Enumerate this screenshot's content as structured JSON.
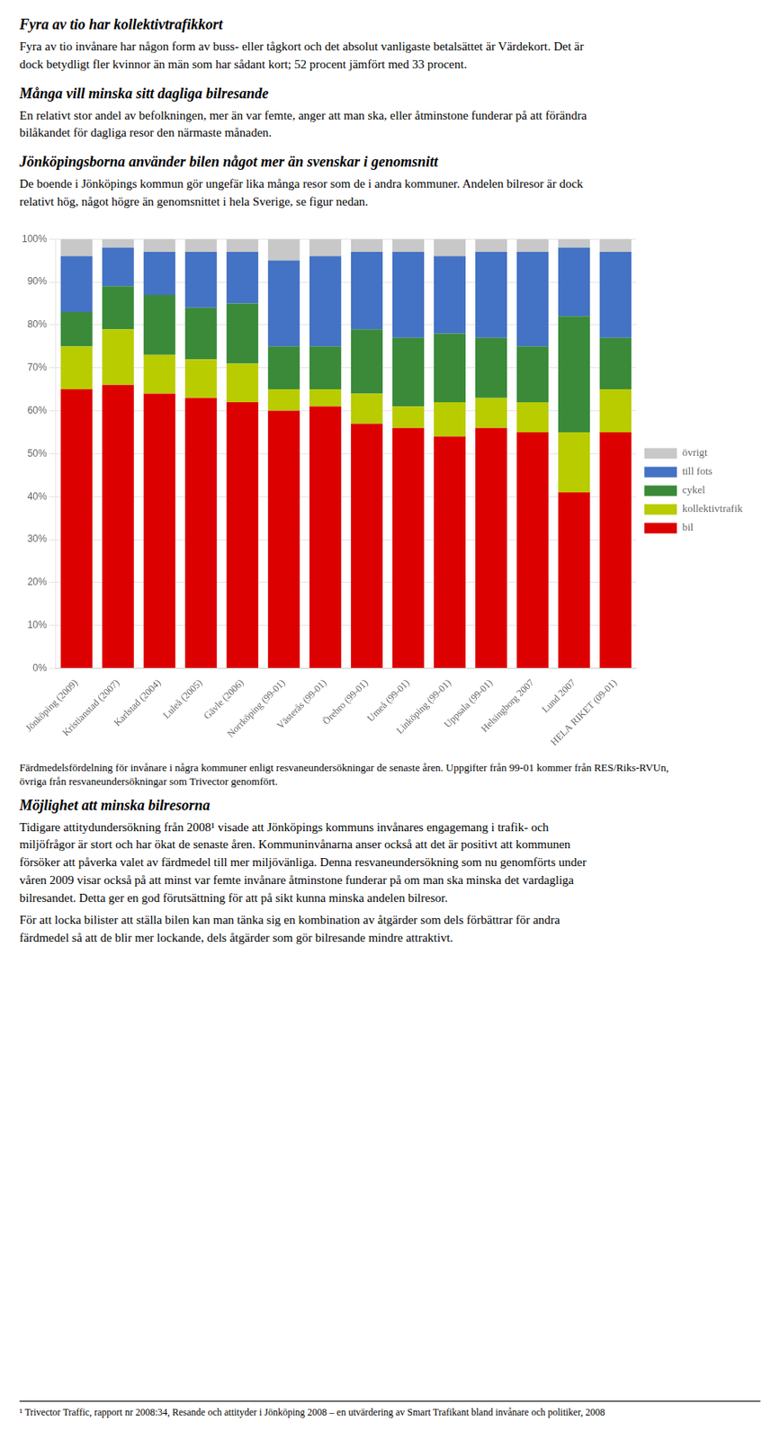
{
  "text_before": [
    {
      "title": "Fyra av tio har kollektivtrafikkort",
      "text": "Fyra av tio invånare har någon form av buss- eller tågkort och det absolut vanligaste betalsättet är Värdekort. Det är dock betydligt fler kvinnor än män som har sådant kort; 52 procent jämfört med 33 procent."
    },
    {
      "title": "Många vill minska sitt dagliga bilresande",
      "text": "En relativt stor andel av befolkningen, mer än var femte, anger att man ska, eller åtminstone funderar på att förändra bilåkandet för dagliga resor den närmaste månaden."
    },
    {
      "title": "Jönköpingsborna använder bilen något mer än svenskar i genomsnitt",
      "text": "De boende i Jönköpings kommun gör ungefär lika många resor som de i andra kommuner. Andelen bilresor är dock relativt hög, något högre än genomsnittet i hela Sverige, se figur nedan."
    }
  ],
  "chart_data": {
    "type": "bar",
    "stacked": true,
    "categories": [
      "Jönköping (2009)",
      "Kristianstad (2007)",
      "Karlstad (2004)",
      "Luleå (2005)",
      "Gävle (2006)",
      "Norrköping (99-01)",
      "Västerås (99-01)",
      "Örebro (99-01)",
      "Umeå (99-01)",
      "Linköping (99-01)",
      "Uppsala (99-01)",
      "Helsingborg 2007",
      "Lund 2007",
      "HELA RIKET (09-01)"
    ],
    "series": [
      {
        "name": "bil",
        "color": "#dd0000",
        "values": [
          65,
          66,
          64,
          63,
          62,
          60,
          61,
          57,
          56,
          54,
          56,
          55,
          41,
          55
        ]
      },
      {
        "name": "kollektivtrafik",
        "color": "#b8cc00",
        "values": [
          10,
          13,
          9,
          9,
          9,
          5,
          4,
          7,
          5,
          8,
          7,
          7,
          14,
          10
        ]
      },
      {
        "name": "cykel",
        "color": "#3a8a3a",
        "values": [
          8,
          10,
          14,
          12,
          14,
          10,
          10,
          15,
          16,
          16,
          14,
          13,
          27,
          12
        ]
      },
      {
        "name": "till fots",
        "color": "#4472c4",
        "values": [
          13,
          9,
          10,
          13,
          12,
          20,
          21,
          18,
          20,
          18,
          20,
          22,
          16,
          20
        ]
      },
      {
        "name": "övrigt",
        "color": "#c8c8c8",
        "values": [
          4,
          2,
          3,
          3,
          3,
          5,
          4,
          3,
          3,
          4,
          3,
          3,
          2,
          3
        ]
      }
    ],
    "ylim": [
      0,
      100
    ],
    "yticks": [
      {
        "value": 0,
        "label": "0%"
      },
      {
        "value": 10,
        "label": "10%"
      },
      {
        "value": 20,
        "label": "20%"
      },
      {
        "value": 30,
        "label": "30%"
      },
      {
        "value": 40,
        "label": "40%"
      },
      {
        "value": 50,
        "label": "50%"
      },
      {
        "value": 60,
        "label": "60%"
      },
      {
        "value": 70,
        "label": "70%"
      },
      {
        "value": 80,
        "label": "80%"
      },
      {
        "value": 90,
        "label": "90%"
      },
      {
        "value": 100,
        "label": "100%"
      }
    ],
    "grid": "y",
    "legend": "right",
    "caption": "Färdmedelsfördelning för invånare i några kommuner enligt resvaneundersökningar de senaste åren. Uppgifter från 99-01 kommer från RES/Riks-RVUn, övriga från resvaneundersökningar som Trivector genomfört."
  },
  "text_after": [
    {
      "title": "Möjlighet att minska bilresorna",
      "text": [
        "Tidigare attitydundersökning från 2008¹ visade att Jönköpings kommuns invånares engagemang i trafik- och miljöfrågor är stort och har ökat de senaste åren. Kommuninvånarna anser också att det är positivt att kommunen försöker att påverka valet av färdmedel till mer miljövänliga. Denna resvaneundersökning som nu genomförts under våren 2009 visar också på att minst var femte invånare åtminstone funderar på om man ska minska det vardagliga bilresandet. Detta ger en god förutsättning för att på sikt kunna minska andelen bilresor.",
        "För att locka bilister att ställa bilen kan man tänka sig en kombination av åtgärder som dels förbättrar för andra färdmedel så att de blir mer lockande, dels åtgärder som gör bilresande mindre attraktivt."
      ]
    }
  ],
  "footnote": "¹ Trivector Traffic, rapport nr 2008:34, Resande och attityder i Jönköping 2008 – en utvärdering av Smart Trafikant bland invånare och politiker, 2008"
}
